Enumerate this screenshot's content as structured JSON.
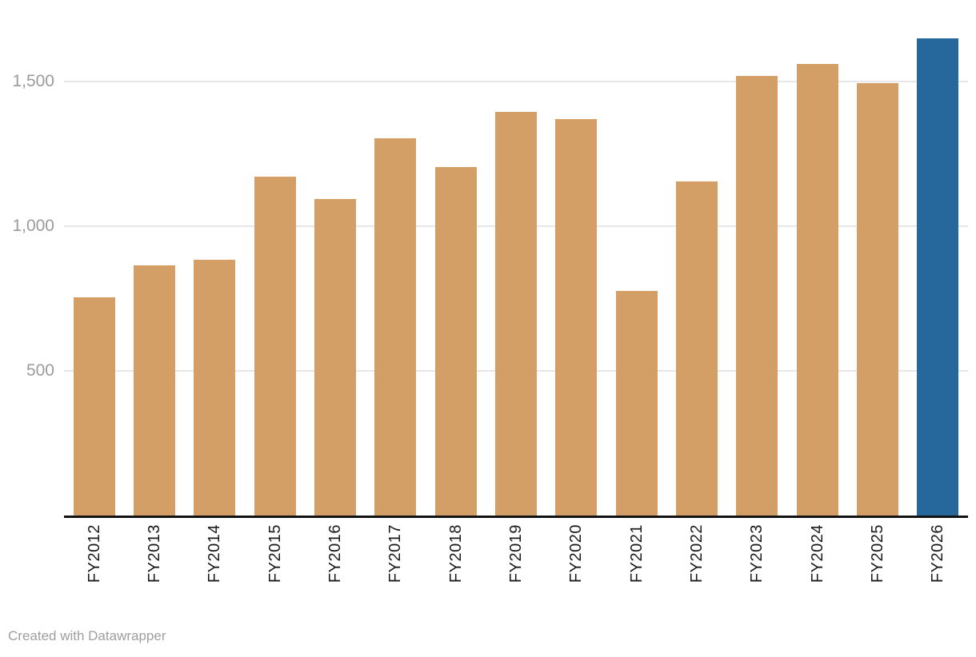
{
  "chart_data": {
    "type": "bar",
    "title": "",
    "xlabel": "",
    "ylabel": "",
    "categories": [
      "FY2012",
      "FY2013",
      "FY2014",
      "FY2015",
      "FY2016",
      "FY2017",
      "FY2018",
      "FY2019",
      "FY2020",
      "FY2021",
      "FY2022",
      "FY2023",
      "FY2024",
      "FY2025",
      "FY2026"
    ],
    "values": [
      755,
      865,
      885,
      1170,
      1095,
      1305,
      1205,
      1395,
      1370,
      775,
      1155,
      1520,
      1560,
      1495,
      1650
    ],
    "ylim": [
      0,
      1700
    ],
    "yticks": [
      {
        "value": 500,
        "label": "500"
      },
      {
        "value": 1000,
        "label": "1,000"
      },
      {
        "value": 1500,
        "label": "1,500"
      }
    ],
    "grid": true,
    "legend_position": "none",
    "bar_color": "#d49e67",
    "highlight_color": "#26689c",
    "highlight_index": 14,
    "gridline_color": "#e7e7e7",
    "axis_color": "#121212",
    "ytick_color": "#9b9b9b",
    "xtick_color": "#1a1a1a",
    "footer_color": "#9e9e9e"
  },
  "footer": {
    "credit": "Created with Datawrapper"
  }
}
